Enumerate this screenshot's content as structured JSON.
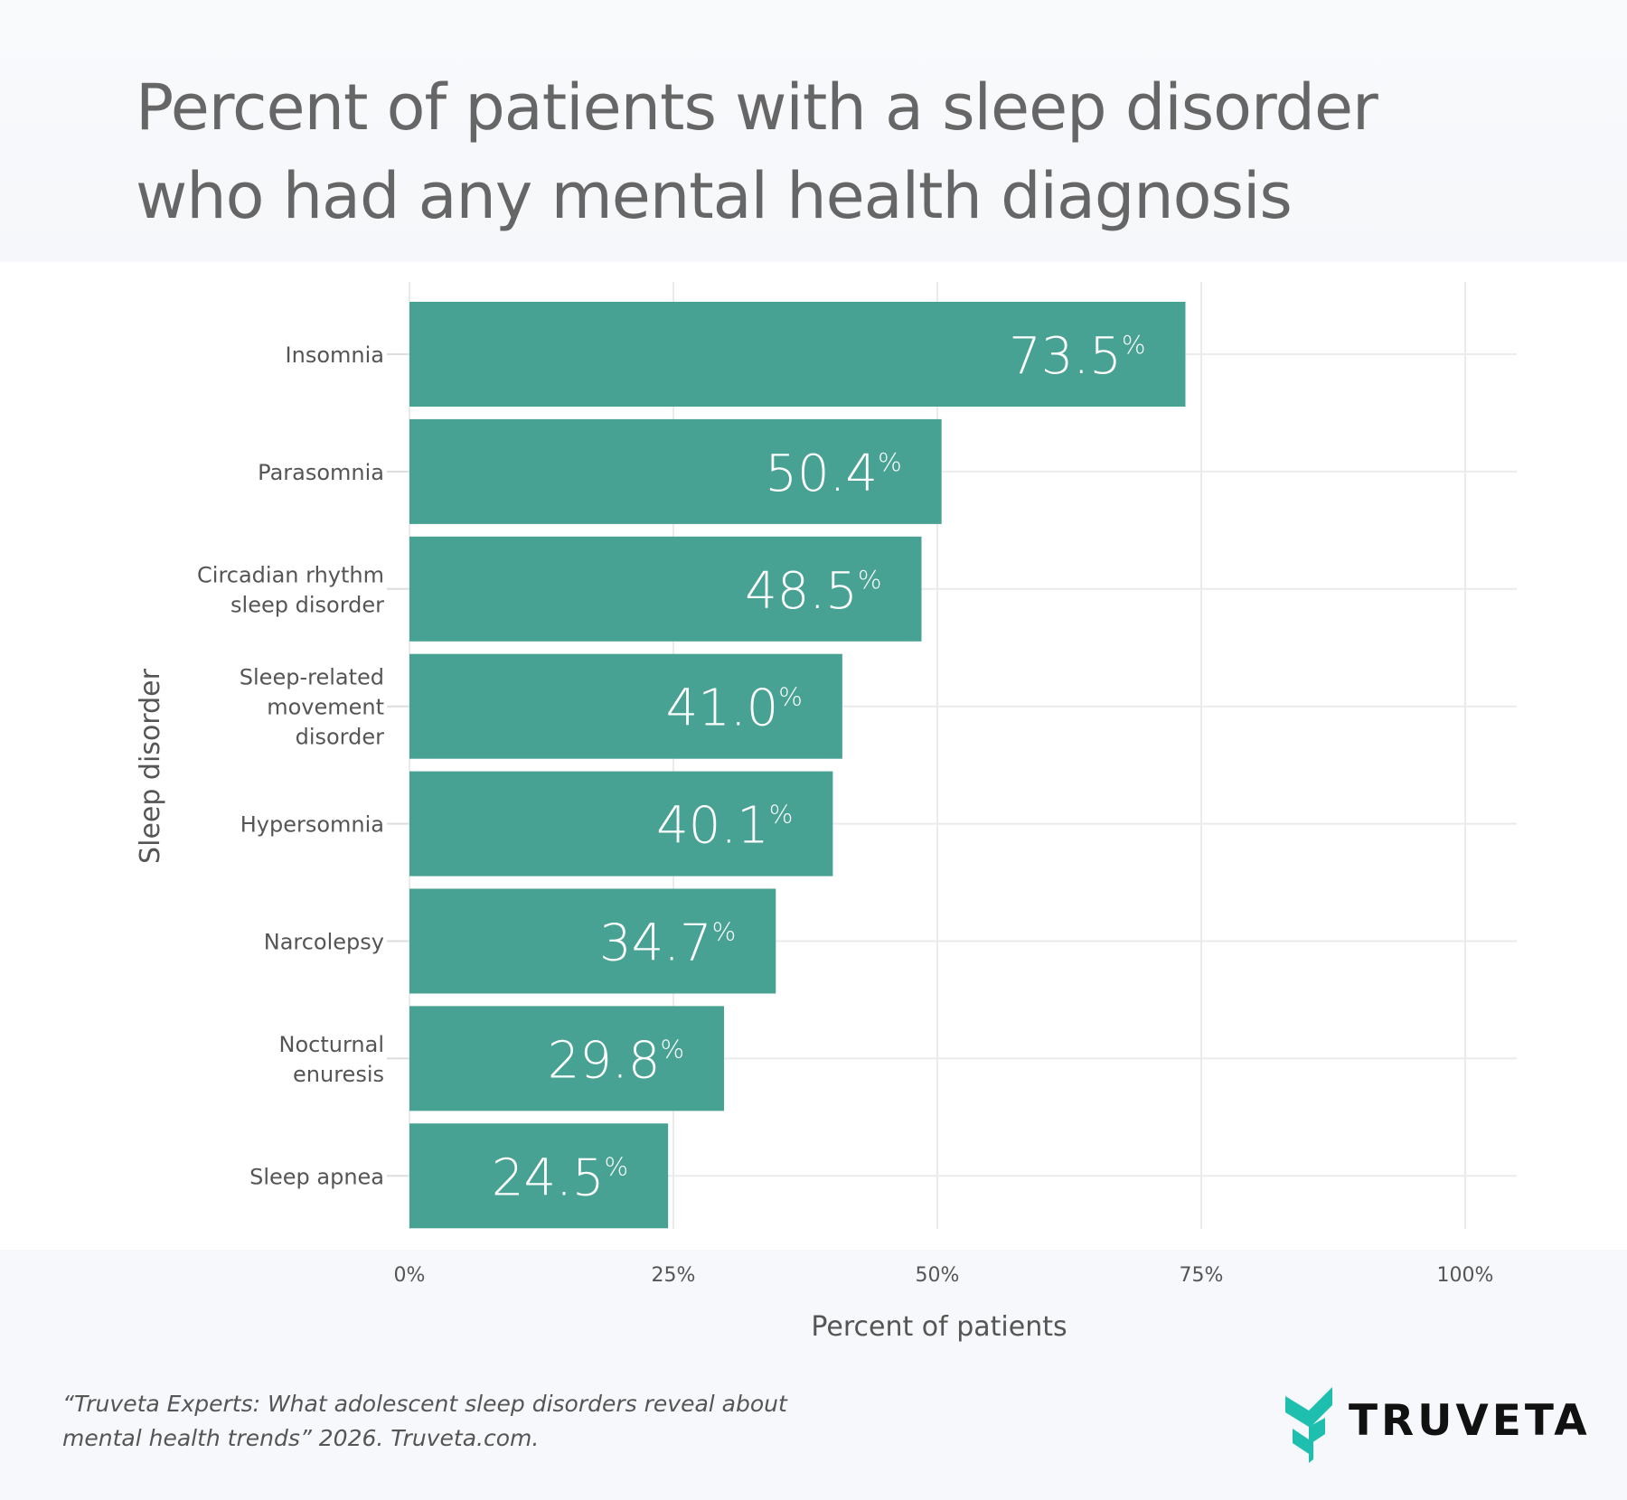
{
  "chart_data": {
    "type": "bar",
    "orientation": "horizontal",
    "title": "Percent of patients with a sleep disorder who had any mental health diagnosis",
    "title_lines": [
      "Percent of patients with a sleep disorder",
      "who had any mental health diagnosis"
    ],
    "xlabel": "Percent of patients",
    "ylabel": "Sleep disorder",
    "categories": [
      [
        "Insomnia"
      ],
      [
        "Parasomnia"
      ],
      [
        "Circadian rhythm",
        "sleep disorder"
      ],
      [
        "Sleep-related",
        "movement",
        "disorder"
      ],
      [
        "Hypersomnia"
      ],
      [
        "Narcolepsy"
      ],
      [
        "Nocturnal",
        "enuresis"
      ],
      [
        "Sleep apnea"
      ]
    ],
    "values": [
      73.5,
      50.4,
      48.5,
      41.0,
      40.1,
      34.7,
      29.8,
      24.5
    ],
    "value_labels": [
      "73.5",
      "50.4",
      "48.5",
      "41.0",
      "40.1",
      "34.7",
      "29.8",
      "24.5"
    ],
    "value_suffix": "%",
    "xlim": [
      0,
      100
    ],
    "xticks": [
      0,
      25,
      50,
      75,
      100
    ],
    "xtick_labels": [
      "0%",
      "25%",
      "50%",
      "75%",
      "100%"
    ],
    "grid": true,
    "bar_color": "#48a294"
  },
  "footer": {
    "citation_lines": [
      "“Truveta Experts: What adolescent sleep disorders reveal about",
      "mental health trends” 2026. Truveta.com."
    ]
  },
  "logo": {
    "text": "TRUVETA",
    "color": "#1fbfb0"
  }
}
